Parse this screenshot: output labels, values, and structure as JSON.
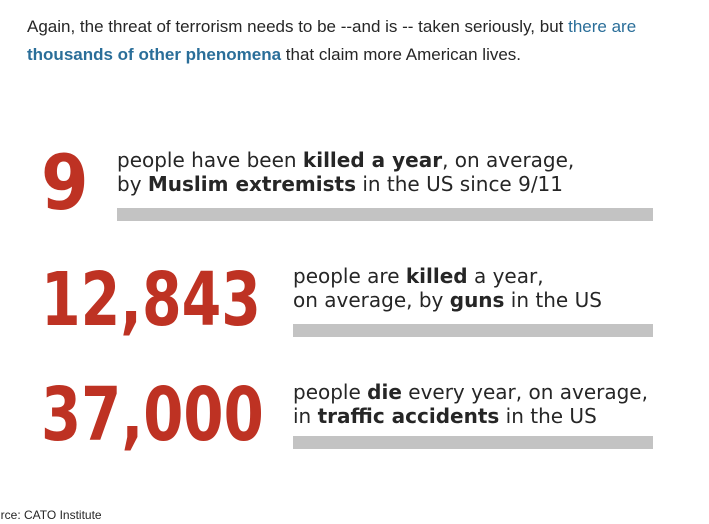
{
  "intro": {
    "text_before": "Again, the threat of terrorism needs to be --and is -- taken seriously, but ",
    "link_part1": "there are ",
    "link_part2_bold": "thousands of other phenomena",
    "text_after": " that claim more American lives."
  },
  "stats": [
    {
      "number": "9",
      "line1": [
        "people have been ",
        "killed a year",
        ", on average,"
      ],
      "line2": [
        "by ",
        "Muslim extremists",
        " in the US since 9/11"
      ]
    },
    {
      "number": "12,843",
      "line1": [
        "people are ",
        "killed",
        " a year,"
      ],
      "line2": [
        "on average, by ",
        "guns",
        " in the US"
      ]
    },
    {
      "number": "37,000",
      "line1": [
        "people ",
        "die",
        " every year, on average,"
      ],
      "line2": [
        "in ",
        "traffic accidents",
        " in the US"
      ]
    }
  ],
  "source": "urce: CATO Institute",
  "colors": {
    "number_red": "#be3223",
    "link_blue": "#2a6e99",
    "bar_gray": "#c3c3c3"
  }
}
